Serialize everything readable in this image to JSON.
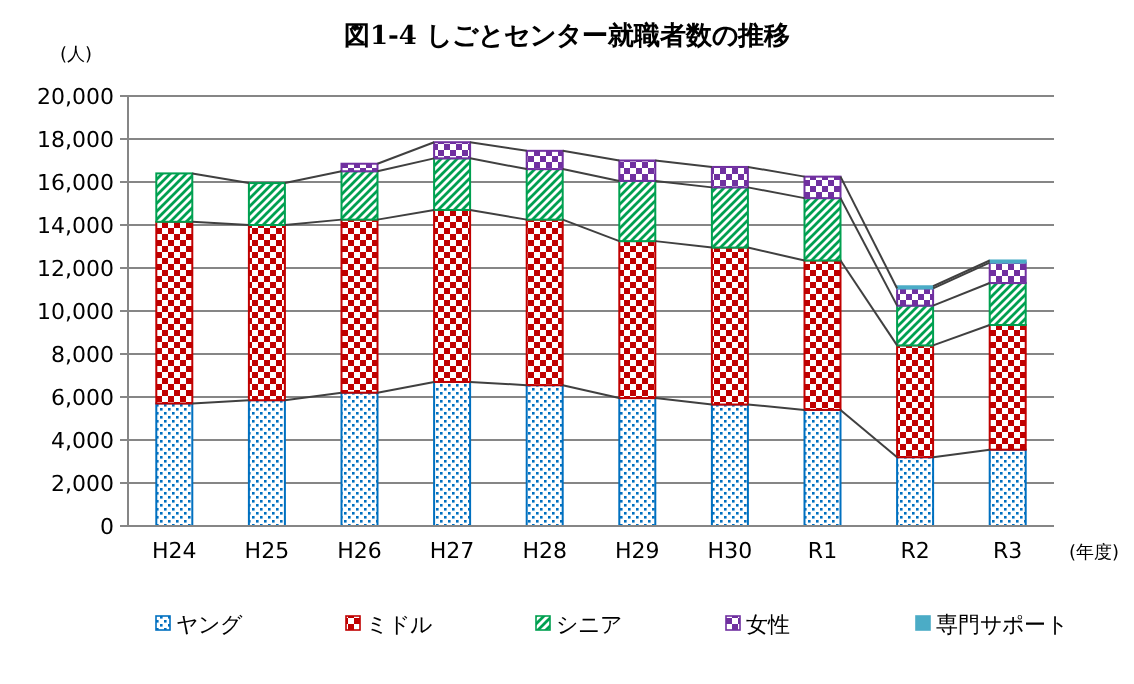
{
  "chart_data": {
    "type": "bar",
    "title": "図1-4  しごとセンター就職者数の推移",
    "xlabel": "(年度)",
    "ylabel": "(人)",
    "categories": [
      "H24",
      "H25",
      "H26",
      "H27",
      "H28",
      "H29",
      "H30",
      "R1",
      "R2",
      "R3"
    ],
    "stacked": true,
    "grid": "y",
    "legend": "bottom",
    "ylim": [
      0,
      20000
    ],
    "yticks": [
      {
        "value": 0,
        "label": "0"
      },
      {
        "value": 2000,
        "label": "2,000"
      },
      {
        "value": 4000,
        "label": "4,000"
      },
      {
        "value": 6000,
        "label": "6,000"
      },
      {
        "value": 8000,
        "label": "8,000"
      },
      {
        "value": 10000,
        "label": "10,000"
      },
      {
        "value": 12000,
        "label": "12,000"
      },
      {
        "value": 14000,
        "label": "14,000"
      },
      {
        "value": 16000,
        "label": "16,000"
      },
      {
        "value": 18000,
        "label": "18,000"
      },
      {
        "value": 20000,
        "label": "20,000"
      }
    ],
    "series": [
      {
        "name": "ヤング",
        "color": "#0070c0",
        "values": [
          5700,
          5850,
          6200,
          6700,
          6550,
          5950,
          5650,
          5400,
          3200,
          3550
        ]
      },
      {
        "name": "ミドル",
        "color": "#c00000",
        "values": [
          8450,
          8150,
          8050,
          8000,
          7700,
          7300,
          7300,
          6950,
          5200,
          5800
        ]
      },
      {
        "name": "シニア",
        "color": "#00a050",
        "values": [
          2250,
          1950,
          2250,
          2400,
          2350,
          2800,
          2800,
          2900,
          1850,
          1950
        ]
      },
      {
        "name": "女性",
        "color": "#7030a0",
        "values": [
          null,
          null,
          350,
          750,
          850,
          950,
          950,
          1000,
          800,
          950
        ]
      },
      {
        "name": "専門サポート",
        "color": "#4bacc6",
        "values": [
          null,
          null,
          null,
          null,
          null,
          null,
          null,
          null,
          100,
          100
        ]
      }
    ]
  }
}
